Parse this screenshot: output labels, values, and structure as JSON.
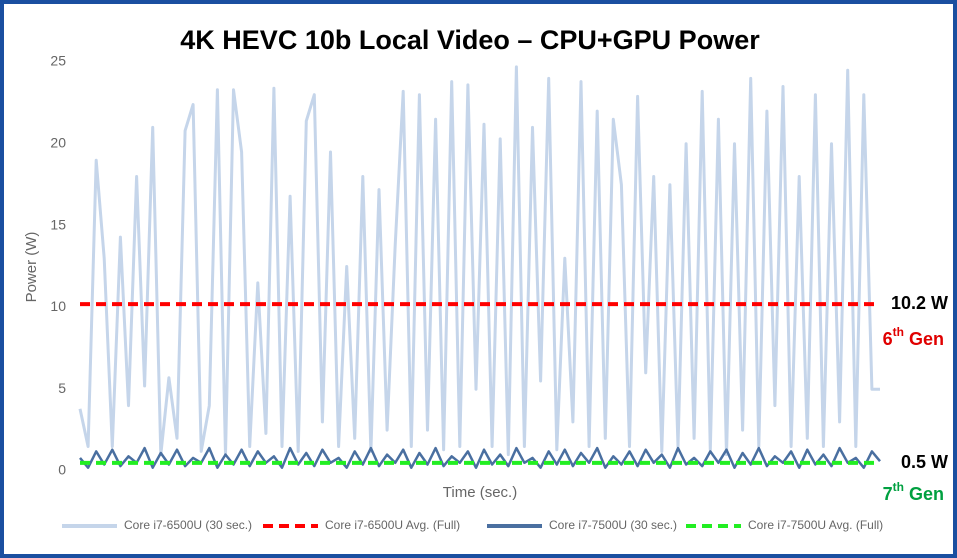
{
  "chart_data": {
    "type": "line",
    "title": "4K HEVC 10b Local Video – CPU+GPU Power",
    "x_label": "Time (sec.)",
    "y_label": "Power (W)",
    "ylim": [
      0,
      25
    ],
    "yticks": [
      0,
      5,
      10,
      15,
      20,
      25
    ],
    "grid": false,
    "legend": "bottom",
    "series": [
      {
        "name": "Core i7-6500U (30 sec.)",
        "color": "#c5d5ea",
        "values": [
          3.8,
          1.5,
          19,
          13,
          1.5,
          14.3,
          4,
          18,
          5.2,
          21,
          1,
          5.7,
          2,
          20.8,
          22.4,
          1.2,
          4,
          23.3,
          1,
          23.3,
          19.5,
          1.5,
          11.5,
          2.3,
          23.4,
          1.5,
          16.8,
          1.2,
          21.4,
          23,
          3,
          19.5,
          1.5,
          12.5,
          2,
          18,
          1.2,
          17.2,
          2.5,
          13.8,
          23.2,
          1.5,
          23,
          2.5,
          21.5,
          1.3,
          23.8,
          1.5,
          23.6,
          5,
          21.2,
          1.5,
          20.3,
          1,
          24.7,
          1.5,
          21,
          5.5,
          24,
          1.3,
          13,
          3,
          23.8,
          1.5,
          22,
          2,
          21.5,
          17.5,
          1.5,
          22.9,
          6,
          18,
          1.2,
          17.5,
          1.5,
          20,
          2,
          23.2,
          1.3,
          21.5,
          1,
          20,
          2.5,
          24,
          1.5,
          22,
          4,
          23.5,
          1.5,
          18,
          2,
          23,
          1.5,
          20,
          3,
          24.5,
          1.5,
          23,
          5,
          5
        ]
      },
      {
        "name": "Core i7-6500U Avg. (Full)",
        "color": "#ff0000",
        "dashed": true,
        "value": 10.2
      },
      {
        "name": "Core i7-7500U (30 sec.)",
        "color": "#4a6fa0",
        "values": [
          0.8,
          0.2,
          1.2,
          0.4,
          1.3,
          0.3,
          0.9,
          0.5,
          1.4,
          0.2,
          1.1,
          0.4,
          1.3,
          0.3,
          0.8,
          0.5,
          1.4,
          0.2,
          1.0,
          0.4,
          1.3,
          0.3,
          1.2,
          0.5,
          0.9,
          0.2,
          1.4,
          0.4,
          1.1,
          0.3,
          1.3,
          0.5,
          0.8,
          0.2,
          1.2,
          0.4,
          1.4,
          0.3,
          1.0,
          0.5,
          1.3,
          0.2,
          1.1,
          0.4,
          1.4,
          0.3,
          0.9,
          0.5,
          1.2,
          0.2,
          1.3,
          0.4,
          1.0,
          0.3,
          1.4,
          0.5,
          0.8,
          0.2,
          1.2,
          0.4,
          1.3,
          0.3,
          1.1,
          0.5,
          1.4,
          0.2,
          0.9,
          0.4,
          1.2,
          0.3,
          1.3,
          0.5,
          1.0,
          0.2,
          1.4,
          0.4,
          0.8,
          0.3,
          1.2,
          0.5,
          1.3,
          0.2,
          1.1,
          0.4,
          1.4,
          0.3,
          0.9,
          0.5,
          1.2,
          0.2,
          1.3,
          0.4,
          1.0,
          0.3,
          1.4,
          0.5,
          0.8,
          0.2,
          1.2,
          0.6
        ]
      },
      {
        "name": "Core i7-7500U Avg. (Full)",
        "color": "#22ee22",
        "dashed": true,
        "value": 0.5
      }
    ],
    "annotations": [
      {
        "text": "10.2 W",
        "color": "#000000"
      },
      {
        "parts": [
          "6",
          "th",
          " Gen"
        ],
        "color": "#e00000"
      },
      {
        "text": "0.5 W",
        "color": "#000000"
      },
      {
        "parts": [
          "7",
          "th",
          " Gen"
        ],
        "color": "#00a040"
      }
    ]
  }
}
